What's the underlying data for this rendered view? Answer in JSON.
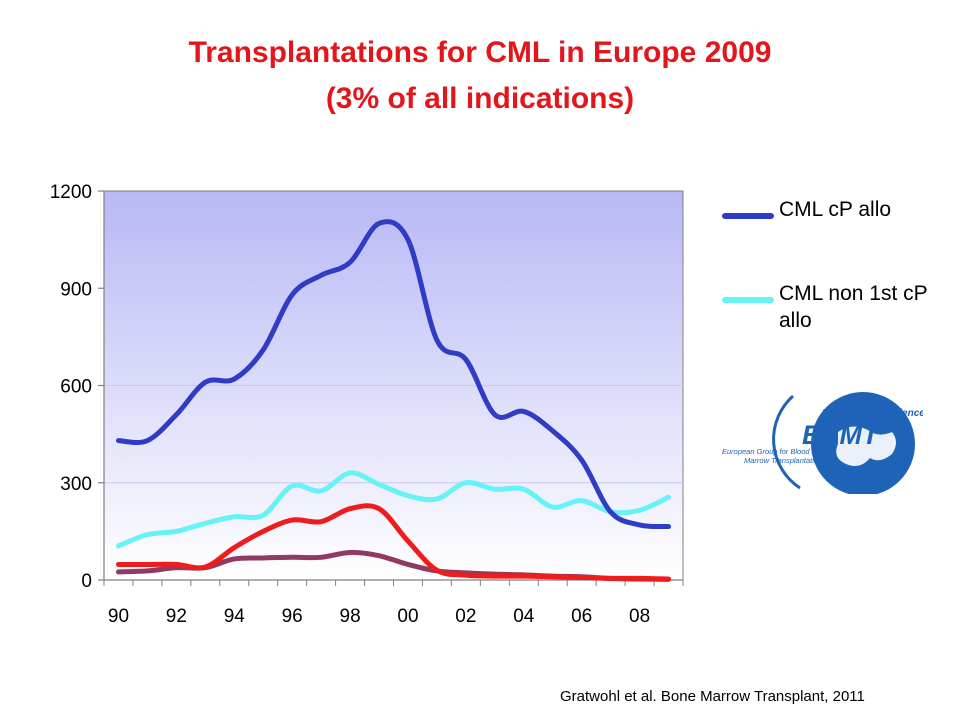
{
  "title": {
    "line1": "Transplantations for CML in Europe 2009",
    "line2": "(3% of all indications)"
  },
  "citation": "Gratwohl et al. Bone Marrow Transplant, 2011",
  "logo": {
    "tagline": "Excellence in science",
    "acronym": "EBMT",
    "org_line1": "European Group for Blood and",
    "org_line2": "Marrow Transplantation"
  },
  "chart_data": {
    "type": "line",
    "title": "",
    "xlabel": "",
    "ylabel": "",
    "x": [
      1990,
      1991,
      1992,
      1993,
      1994,
      1995,
      1996,
      1997,
      1998,
      1999,
      2000,
      2001,
      2002,
      2003,
      2004,
      2005,
      2006,
      2007,
      2008,
      2009
    ],
    "xtick_values": [
      1990,
      1992,
      1994,
      1996,
      1998,
      2000,
      2002,
      2004,
      2006,
      2008
    ],
    "xtick_labels": [
      "90",
      "92",
      "94",
      "96",
      "98",
      "00",
      "02",
      "04",
      "06",
      "08"
    ],
    "xlim": [
      1989.5,
      2009.5
    ],
    "ylim": [
      0,
      1200
    ],
    "yticks": [
      0,
      300,
      600,
      900,
      1200
    ],
    "ytick_labels": [
      "0",
      "300",
      "600",
      "900",
      "1200"
    ],
    "grid": true,
    "plot_background": "#b8b8f6",
    "legend_position": "right",
    "series": [
      {
        "name": "CML cP allo",
        "color": "#2f3cc4",
        "in_legend": true,
        "values": [
          430,
          430,
          510,
          610,
          620,
          710,
          880,
          940,
          980,
          1100,
          1050,
          740,
          680,
          510,
          520,
          460,
          370,
          210,
          170,
          165
        ]
      },
      {
        "name": "CML non 1st cP allo",
        "color": "#66f2f6",
        "in_legend": true,
        "values": [
          105,
          140,
          150,
          175,
          195,
          200,
          290,
          275,
          330,
          295,
          260,
          250,
          300,
          280,
          280,
          225,
          245,
          210,
          215,
          255
        ]
      },
      {
        "color": "#ee1c1c",
        "in_legend": false,
        "values": [
          48,
          48,
          48,
          40,
          100,
          150,
          185,
          180,
          220,
          220,
          120,
          30,
          15,
          12,
          12,
          10,
          8,
          5,
          5,
          3
        ]
      },
      {
        "color": "#8f3a62",
        "in_legend": false,
        "values": [
          25,
          28,
          38,
          38,
          65,
          68,
          70,
          70,
          85,
          75,
          48,
          28,
          22,
          18,
          16,
          12,
          10,
          5,
          3,
          2
        ]
      }
    ]
  }
}
